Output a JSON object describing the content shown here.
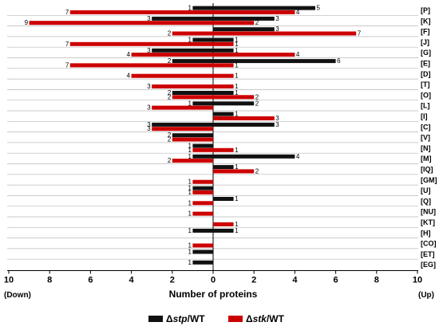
{
  "chart_data": {
    "type": "bar",
    "orientation": "horizontal-diverging",
    "xlabel": "Number of proteins",
    "xlim": [
      -10,
      10
    ],
    "x_ticks": [
      "10",
      "8",
      "6",
      "4",
      "2",
      "0",
      "2",
      "4",
      "6",
      "8",
      "10"
    ],
    "down_label": "(Down)",
    "up_label": "(Up)",
    "categories": [
      "[P]",
      "[K]",
      "[F]",
      "[J]",
      "[G]",
      "[E]",
      "[D]",
      "[T]",
      "[O]",
      "[L]",
      "[I]",
      "[C]",
      "[V]",
      "[N]",
      "[M]",
      "[IQ]",
      "[GM]",
      "[U]",
      "[Q]",
      "[NU]",
      "[KT]",
      "[H]",
      "[CO]",
      "[ET]",
      "[EG]"
    ],
    "series": [
      {
        "name": "Δstp/WT",
        "color": "#111111",
        "up": [
          5,
          3,
          3,
          1,
          1,
          6,
          0,
          0,
          1,
          2,
          1,
          3,
          0,
          0,
          4,
          1,
          0,
          0,
          1,
          0,
          0,
          1,
          0,
          0,
          0
        ],
        "down": [
          1,
          3,
          0,
          1,
          3,
          2,
          0,
          0,
          2,
          1,
          0,
          3,
          2,
          1,
          1,
          0,
          0,
          1,
          0,
          0,
          0,
          1,
          0,
          1,
          1
        ]
      },
      {
        "name": "Δstk/WT",
        "color": "#cc0000",
        "up": [
          4,
          2,
          7,
          1,
          4,
          1,
          1,
          1,
          2,
          0,
          3,
          0,
          0,
          1,
          0,
          2,
          0,
          0,
          0,
          0,
          1,
          0,
          0,
          0,
          0
        ],
        "down": [
          7,
          9,
          2,
          7,
          4,
          7,
          4,
          3,
          2,
          3,
          0,
          3,
          2,
          1,
          2,
          0,
          1,
          1,
          1,
          1,
          0,
          0,
          1,
          0,
          0
        ]
      }
    ],
    "legend": {
      "position": "bottom",
      "items": [
        {
          "prefix": "Δ",
          "italic": "stp",
          "suffix": "/WT",
          "color": "#111111"
        },
        {
          "prefix": "Δ",
          "italic": "stk",
          "suffix": "/WT",
          "color": "#cc0000"
        }
      ]
    }
  }
}
